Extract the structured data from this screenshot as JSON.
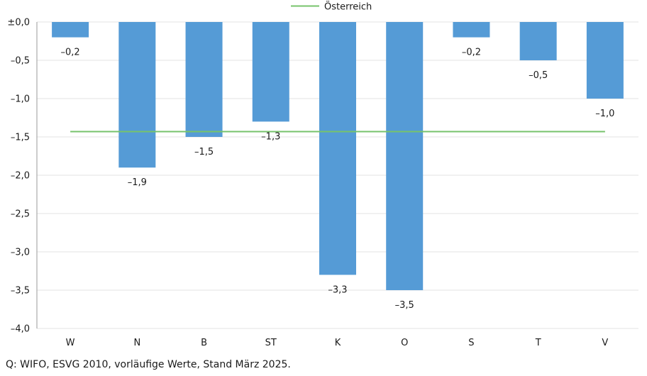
{
  "chart_data": {
    "type": "bar",
    "categories": [
      "W",
      "N",
      "B",
      "ST",
      "K",
      "O",
      "S",
      "T",
      "V"
    ],
    "values": [
      -0.2,
      -1.9,
      -1.5,
      -1.3,
      -3.3,
      -3.5,
      -0.2,
      -0.5,
      -1.0
    ],
    "data_labels": [
      "–0,2",
      "–1,9",
      "–1,5",
      "–1,3",
      "–3,3",
      "–3,5",
      "–0,2",
      "–0,5",
      "–1,0"
    ],
    "reference_line": {
      "name": "Österreich",
      "value": -1.43,
      "color": "#77c36b"
    },
    "ylim": [
      -4.0,
      0.0
    ],
    "yticks": [
      0.0,
      -0.5,
      -1.0,
      -1.5,
      -2.0,
      -2.5,
      -3.0,
      -3.5,
      -4.0
    ],
    "ytick_labels": [
      "±0,0",
      "–0,5",
      "–1,0",
      "–1,5",
      "–2,0",
      "–2,5",
      "–3,0",
      "–3,5",
      "–4,0"
    ],
    "bar_color": "#559bd6",
    "grid": true,
    "legend_position": "top-center",
    "title": "",
    "xlabel": "",
    "ylabel": ""
  },
  "source_note": "Q: WIFO, ESVG 2010, vorläufige Werte, Stand März 2025."
}
